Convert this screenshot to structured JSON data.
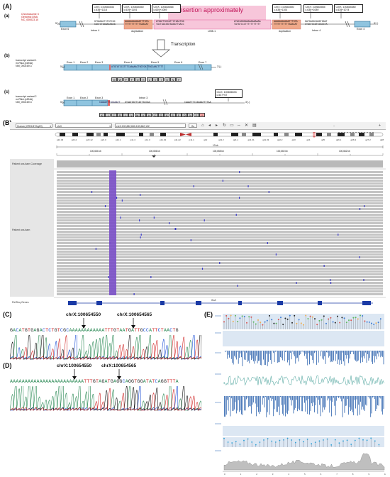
{
  "panels": {
    "A": "(A)",
    "B": "(B)",
    "C": "(C)",
    "D": "(D)",
    "E": "(E)"
  },
  "panelA": {
    "sub_a": "(a)",
    "sub_b": "(b)",
    "sub_c": "(c)",
    "locus": [
      "Chromosome X",
      "Genomic DNA",
      "NC_000023.10"
    ],
    "callouts": [
      [
        "ChrX: 100654536",
        "c.639+1118"
      ],
      [
        "ChrX: 100654550",
        "c.639+1104"
      ],
      [
        "ChrX: 100654565",
        "c.639+1089"
      ],
      [
        "ChrX: 100654550",
        "c.639+1104"
      ],
      [
        "ChrX: 100654565",
        "c.639+1089"
      ],
      [
        "ChrX: 100654580",
        "c.639+1074"
      ]
    ],
    "insertion_label": "Insertion approximately",
    "labels": {
      "exon6": "Exon 6",
      "intron4_left": "Intron 4",
      "dup_left": "duplication",
      "line1": "LINE-1",
      "dup_right": "duplication",
      "intron4_right": "Intron 4",
      "exon4": "Exon 4",
      "five_prime": "5'(-)",
      "three_prime": "3'(-)"
    },
    "seqs": {
      "left_top": "GTGAGACTCTGTCGC",
      "left_bot": "CACTCTGAGACAGCG",
      "dupL_top": "AAAAAAAAAAATTTGTA",
      "dupL_bot": "TTTTTTTTTTTAAACAT",
      "ins_top": "ATGATTGCCATTCTAACTGG",
      "ins_bot": "TACTAACGGTAAGATTGACC",
      "mid_top": "ATACAGGGAAAAAAAAAAA",
      "mid_bot": "TATGTCCCTTTTTTTTTTT",
      "dupR_top": "AAAAAAAAAAATTTGTA",
      "dupR_bot": "TTTTTTTTTTTAAACAT",
      "right_top": "GATGAGGCAGGTGGAT",
      "right_bot": "CTACTCCGTCCACCTA"
    },
    "transcription": "Transcription",
    "tv1": {
      "name": "transcript variant 1",
      "type": "m-RNA (cDNA)",
      "acc": "NM_000169.3",
      "exons": [
        "Exon 1",
        "Exon 2",
        "Exon 3",
        "Exon 4",
        "Exon 5",
        "Exon 6",
        "Exon 7"
      ],
      "seq": "ATGTATCCCTTTCAAAAACTGGTGATTGGCAACTTTT",
      "aa": [
        "M",
        "W",
        "P",
        "F",
        "Q",
        "K",
        "L",
        "V",
        "I",
        "G",
        "N",
        "F"
      ]
    },
    "tv2": {
      "name": "transcript variant 2",
      "type": "m-RNA (cDNA)",
      "acc": "NM_000169.3",
      "exons": [
        "Exon 1",
        "Exon 2",
        "Exon 3"
      ],
      "intron": "Intron 3",
      "callout": [
        "ChrX: 100656533",
        "c.547+67"
      ],
      "seq1": "CAAAATTTGCAGATT",
      "seq2": "GTAATGGTTCATTGCCAG",
      "seq3": "CAAATTTCCAGAATTTTAA",
      "aa": [
        "K",
        "I",
        "C",
        "R",
        "L",
        "V",
        "M",
        "V",
        "H",
        "C",
        "Q",
        "K",
        "S",
        "F",
        "Q",
        "N",
        "F",
        "*"
      ]
    }
  },
  "igv": {
    "genome": "Human (GRCh37/hg19)",
    "chrom": "chrX",
    "locus": "chrX:100,652,840-100,662,102",
    "go": "Go",
    "cytobands": [
      "p22.33",
      "p22.2",
      "p22.12",
      "p21.3",
      "p21.1",
      "p11.4",
      "p11.3",
      "p11.23",
      "p11.22",
      "p11.1",
      "q12",
      "q13.2",
      "q21.1",
      "q21.31",
      "q21.33",
      "q22.2",
      "q23",
      "q24",
      "q25",
      "q26.1",
      "q26.3",
      "q27.2",
      "q28"
    ],
    "scale_label": "10 kb",
    "ruler": [
      "100,654 kb",
      "100,656 kb",
      "100,658 kb",
      "100,660 kb",
      "100,662 kb"
    ],
    "tracks": {
      "coverage": "Patient ora.bam Coverage",
      "bam": "Patient ora.bam",
      "genes": "RefSeq Genes",
      "gene": "GLA"
    }
  },
  "sanger": {
    "C": {
      "left_pos": "chrX:100654550",
      "right_pos": "chrX:100654565",
      "sequence": "GACATGTGAGACTCTGTCGCAAAAAAAAAAAATTTGTAATGATTGCCATTCTAACTG"
    },
    "D": {
      "left_pos": "chrX:100654550",
      "right_pos": "chrX:100654565",
      "sequence": "AAAAAAAAAAAAAAAAAAAAAAAAATTTGTAGATGAGGCAGGTGGATATCAGGTTTA"
    }
  },
  "panelE": {
    "axis": [
      "0",
      "1",
      "2",
      "3",
      "4",
      "5",
      "6",
      "7",
      "8",
      "9",
      "10"
    ]
  }
}
